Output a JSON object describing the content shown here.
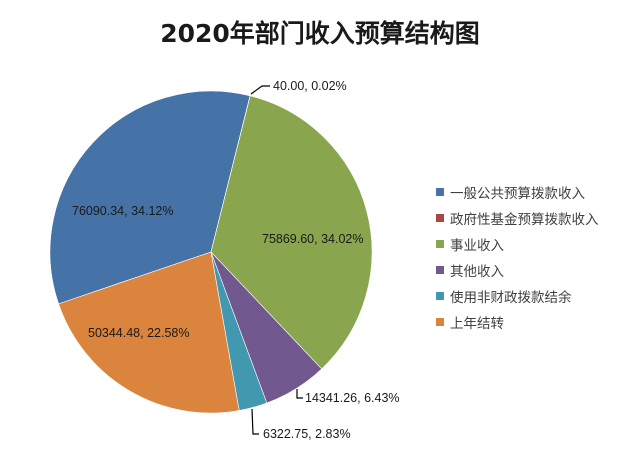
{
  "title": "2020年部门收入预算结构图",
  "legend": {
    "position": "right",
    "items": [
      {
        "label": "一般公共预算拨款收入",
        "color": "#4572A7"
      },
      {
        "label": "政府性基金预算拨款收入",
        "color": "#AA4643"
      },
      {
        "label": "事业收入",
        "color": "#89A54E"
      },
      {
        "label": "其他收入",
        "color": "#71588F"
      },
      {
        "label": "使用非财政拨款结余",
        "color": "#4198AF"
      },
      {
        "label": "上年结转",
        "color": "#DB843D"
      }
    ]
  },
  "chart_data": {
    "type": "pie",
    "title": "2020年部门收入预算结构图",
    "categories": [
      "一般公共预算拨款收入",
      "政府性基金预算拨款收入",
      "事业收入",
      "其他收入",
      "使用非财政拨款结余",
      "上年结转"
    ],
    "values": [
      76090.34,
      40.0,
      75869.6,
      14341.26,
      6322.75,
      50344.48
    ],
    "percentages": [
      34.12,
      0.02,
      34.02,
      6.43,
      2.83,
      22.58
    ],
    "data_labels": [
      "76090.34, 34.12%",
      "40.00, 0.02%",
      "75869.60, 34.02%",
      "14341.26, 6.43%",
      "6322.75, 2.83%",
      "50344.48, 22.58%"
    ],
    "colors": [
      "#4572A7",
      "#AA4643",
      "#89A54E",
      "#71588F",
      "#4198AF",
      "#DB843D"
    ],
    "legend_position": "right",
    "start_angle_deg": -108.8
  }
}
